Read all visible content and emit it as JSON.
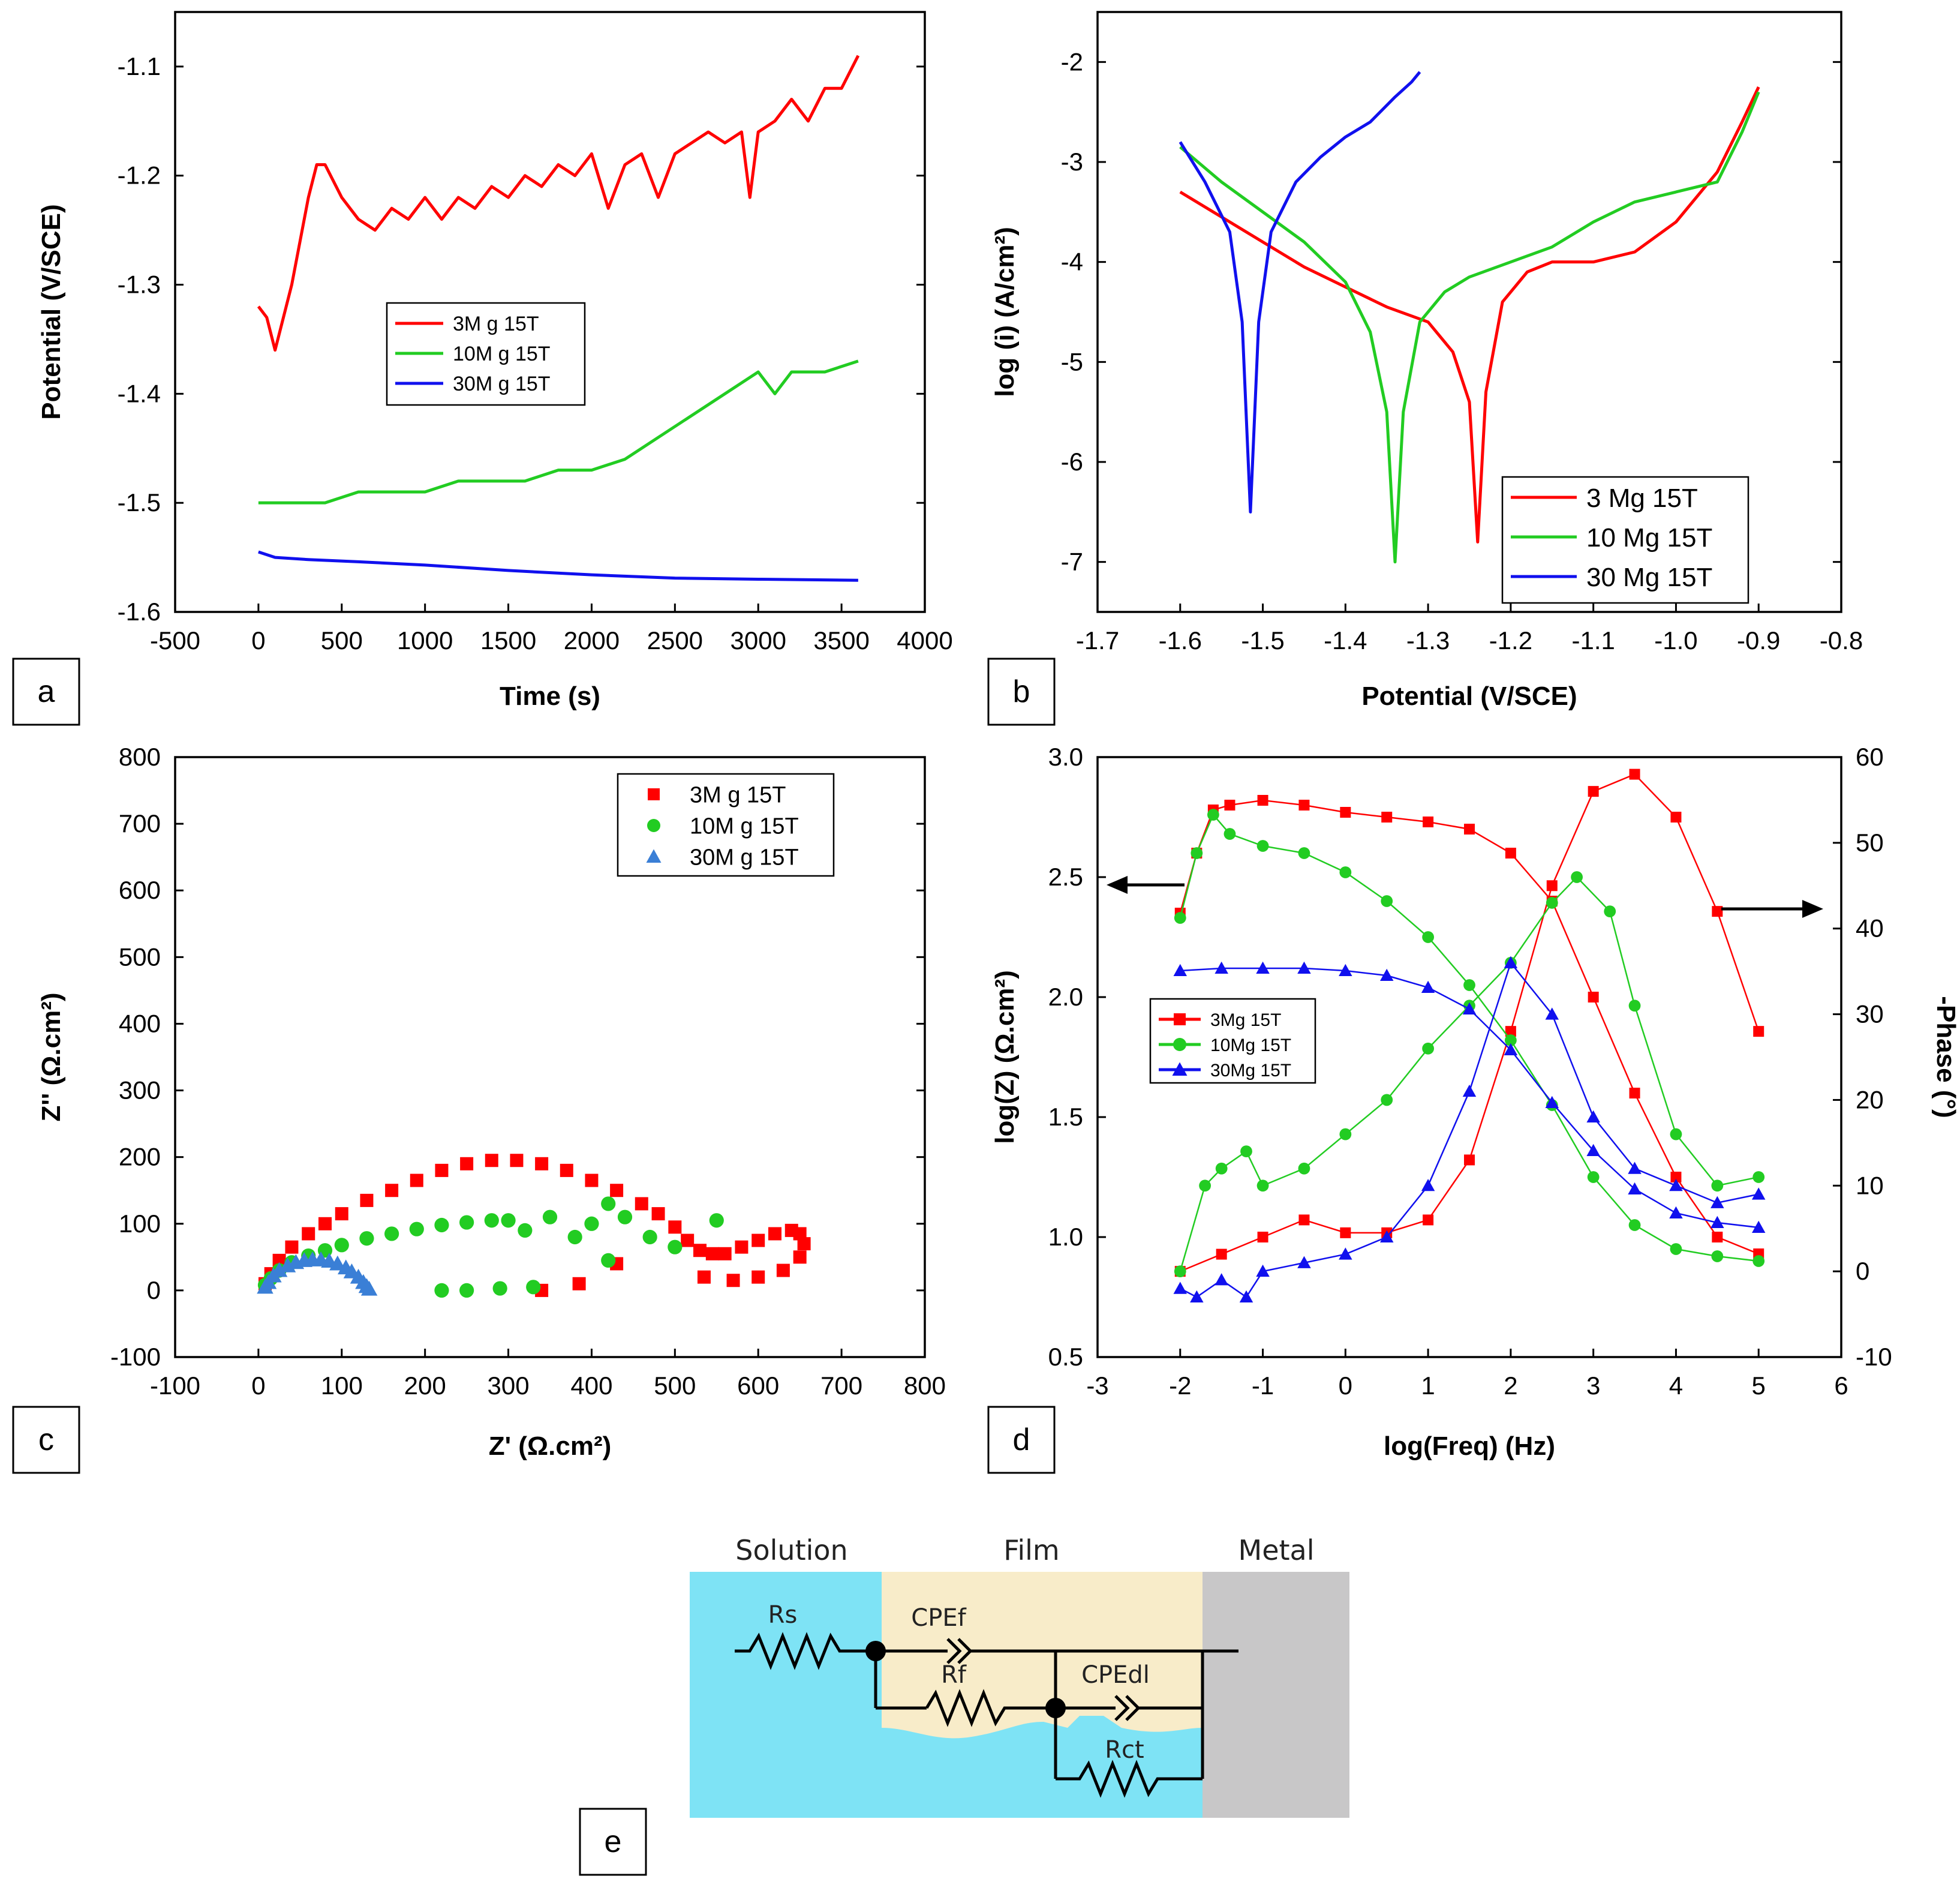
{
  "colors": {
    "red": "#ff0000",
    "green": "#22cc22",
    "blue": "#1010ee",
    "blue_light": "#3a7fd6",
    "solution": "#7ee3f5",
    "film": "#f8ecc9",
    "metal": "#c8c7c8"
  },
  "panel_labels": [
    "a",
    "b",
    "c",
    "d",
    "e"
  ],
  "chart_data": [
    {
      "id": "a",
      "type": "line",
      "xlabel": "Time (s)",
      "ylabel": "Potential (V/SCE)",
      "xlim": [
        -500,
        4000
      ],
      "ylim": [
        -1.6,
        -1.05
      ],
      "xticks": [
        -500,
        0,
        500,
        1000,
        1500,
        2000,
        2500,
        3000,
        3500,
        4000
      ],
      "yticks": [
        -1.6,
        -1.5,
        -1.4,
        -1.3,
        -1.2,
        -1.1
      ],
      "xtick_labels": [
        "-500",
        "0",
        "500",
        "1000",
        "1500",
        "2000",
        "2500",
        "3000",
        "3500",
        "4000"
      ],
      "ytick_labels": [
        "-1.6",
        "-1.5",
        "-1.4",
        "-1.3",
        "-1.2",
        "-1.1"
      ],
      "legend_position": "center",
      "series": [
        {
          "name": "3M g 15T",
          "color": "#ff0000",
          "x": [
            0,
            50,
            100,
            150,
            200,
            250,
            300,
            350,
            400,
            500,
            600,
            700,
            800,
            900,
            1000,
            1100,
            1200,
            1300,
            1400,
            1500,
            1600,
            1700,
            1800,
            1900,
            2000,
            2100,
            2200,
            2300,
            2400,
            2500,
            2600,
            2700,
            2800,
            2900,
            2950,
            3000,
            3100,
            3200,
            3300,
            3400,
            3500,
            3600
          ],
          "y": [
            -1.32,
            -1.33,
            -1.36,
            -1.33,
            -1.3,
            -1.26,
            -1.22,
            -1.19,
            -1.19,
            -1.22,
            -1.24,
            -1.25,
            -1.23,
            -1.24,
            -1.22,
            -1.24,
            -1.22,
            -1.23,
            -1.21,
            -1.22,
            -1.2,
            -1.21,
            -1.19,
            -1.2,
            -1.18,
            -1.23,
            -1.19,
            -1.18,
            -1.22,
            -1.18,
            -1.17,
            -1.16,
            -1.17,
            -1.16,
            -1.22,
            -1.16,
            -1.15,
            -1.13,
            -1.15,
            -1.12,
            -1.12,
            -1.09
          ]
        },
        {
          "name": "10M g 15T",
          "color": "#22cc22",
          "x": [
            0,
            200,
            400,
            600,
            800,
            1000,
            1200,
            1400,
            1600,
            1800,
            2000,
            2200,
            2400,
            2600,
            2800,
            3000,
            3100,
            3200,
            3400,
            3600
          ],
          "y": [
            -1.5,
            -1.5,
            -1.5,
            -1.49,
            -1.49,
            -1.49,
            -1.48,
            -1.48,
            -1.48,
            -1.47,
            -1.47,
            -1.46,
            -1.44,
            -1.42,
            -1.4,
            -1.38,
            -1.4,
            -1.38,
            -1.38,
            -1.37
          ]
        },
        {
          "name": "30M g 15T",
          "color": "#1010ee",
          "x": [
            0,
            100,
            300,
            600,
            1000,
            1500,
            2000,
            2500,
            3000,
            3600
          ],
          "y": [
            -1.545,
            -1.55,
            -1.552,
            -1.554,
            -1.557,
            -1.562,
            -1.566,
            -1.569,
            -1.57,
            -1.571
          ]
        }
      ]
    },
    {
      "id": "b",
      "type": "line",
      "xlabel": "Potential (V/SCE)",
      "ylabel": "log (i) (A/cm²)",
      "xlim": [
        -1.7,
        -0.8
      ],
      "ylim": [
        -7.5,
        -1.5
      ],
      "xticks": [
        -1.7,
        -1.6,
        -1.5,
        -1.4,
        -1.3,
        -1.2,
        -1.1,
        -1.0,
        -0.9,
        -0.8
      ],
      "yticks": [
        -7,
        -6,
        -5,
        -4,
        -3,
        -2
      ],
      "xtick_labels": [
        "-1.7",
        "-1.6",
        "-1.5",
        "-1.4",
        "-1.3",
        "-1.2",
        "-1.1",
        "-1.0",
        "-0.9",
        "-0.8"
      ],
      "ytick_labels": [
        "-7",
        "-6",
        "-5",
        "-4",
        "-3",
        "-2"
      ],
      "legend_position": "bottom-right",
      "series": [
        {
          "name": "3 Mg 15T",
          "color": "#ff0000",
          "x": [
            -1.6,
            -1.55,
            -1.5,
            -1.45,
            -1.4,
            -1.35,
            -1.3,
            -1.27,
            -1.25,
            -1.24,
            -1.23,
            -1.21,
            -1.18,
            -1.15,
            -1.1,
            -1.05,
            -1.0,
            -0.95,
            -0.92,
            -0.9
          ],
          "y": [
            -3.3,
            -3.55,
            -3.8,
            -4.05,
            -4.25,
            -4.45,
            -4.6,
            -4.9,
            -5.4,
            -6.8,
            -5.3,
            -4.4,
            -4.1,
            -4.0,
            -4.0,
            -3.9,
            -3.6,
            -3.1,
            -2.6,
            -2.25
          ]
        },
        {
          "name": "10 Mg 15T",
          "color": "#22cc22",
          "x": [
            -1.6,
            -1.55,
            -1.5,
            -1.45,
            -1.4,
            -1.37,
            -1.35,
            -1.34,
            -1.33,
            -1.31,
            -1.28,
            -1.25,
            -1.2,
            -1.15,
            -1.1,
            -1.05,
            -1.0,
            -0.95,
            -0.92,
            -0.9
          ],
          "y": [
            -2.85,
            -3.2,
            -3.5,
            -3.8,
            -4.2,
            -4.7,
            -5.5,
            -7.0,
            -5.5,
            -4.6,
            -4.3,
            -4.15,
            -4.0,
            -3.85,
            -3.6,
            -3.4,
            -3.3,
            -3.2,
            -2.7,
            -2.3
          ]
        },
        {
          "name": "30 Mg 15T",
          "color": "#1010ee",
          "x": [
            -1.6,
            -1.57,
            -1.54,
            -1.525,
            -1.515,
            -1.505,
            -1.49,
            -1.46,
            -1.43,
            -1.4,
            -1.37,
            -1.34,
            -1.32,
            -1.31
          ],
          "y": [
            -2.8,
            -3.2,
            -3.7,
            -4.6,
            -6.5,
            -4.6,
            -3.7,
            -3.2,
            -2.95,
            -2.75,
            -2.6,
            -2.35,
            -2.2,
            -2.1
          ]
        }
      ]
    },
    {
      "id": "c",
      "type": "scatter",
      "xlabel": "Z' (Ω.cm²)",
      "ylabel": "Z'' (Ω.cm²)",
      "xlim": [
        -100,
        800
      ],
      "ylim": [
        -100,
        800
      ],
      "xticks": [
        -100,
        0,
        100,
        200,
        300,
        400,
        500,
        600,
        700,
        800
      ],
      "yticks": [
        -100,
        0,
        100,
        200,
        300,
        400,
        500,
        600,
        700,
        800
      ],
      "xtick_labels": [
        "-100",
        "0",
        "100",
        "200",
        "300",
        "400",
        "500",
        "600",
        "700",
        "800"
      ],
      "ytick_labels": [
        "-100",
        "0",
        "100",
        "200",
        "300",
        "400",
        "500",
        "600",
        "700",
        "800"
      ],
      "legend_position": "top-right",
      "series": [
        {
          "name": "3M g 15T",
          "color": "#ff0000",
          "marker": "square",
          "x": [
            8,
            15,
            25,
            40,
            60,
            80,
            100,
            130,
            160,
            190,
            220,
            250,
            280,
            310,
            340,
            370,
            400,
            430,
            460,
            480,
            500,
            515,
            530,
            545,
            560,
            580,
            600,
            620,
            640,
            650,
            655,
            650,
            630,
            600,
            570,
            535,
            430,
            385,
            340
          ],
          "y": [
            10,
            25,
            45,
            65,
            85,
            100,
            115,
            135,
            150,
            165,
            180,
            190,
            195,
            195,
            190,
            180,
            165,
            150,
            130,
            115,
            95,
            75,
            60,
            55,
            55,
            65,
            75,
            85,
            90,
            85,
            70,
            50,
            30,
            20,
            15,
            20,
            40,
            10,
            0
          ]
        },
        {
          "name": "10M g 15T",
          "color": "#22cc22",
          "marker": "circle",
          "x": [
            8,
            15,
            25,
            40,
            60,
            80,
            100,
            130,
            160,
            190,
            220,
            250,
            280,
            300,
            320,
            350,
            380,
            400,
            420,
            440,
            470,
            500,
            550,
            420,
            330,
            290,
            250,
            220
          ],
          "y": [
            8,
            18,
            30,
            42,
            52,
            60,
            68,
            78,
            85,
            92,
            98,
            102,
            105,
            105,
            90,
            110,
            80,
            100,
            130,
            110,
            80,
            65,
            105,
            45,
            5,
            3,
            0,
            0
          ]
        },
        {
          "name": "30M g 15T",
          "color": "#3a7fd6",
          "marker": "triangle",
          "x": [
            8,
            12,
            18,
            25,
            35,
            45,
            55,
            65,
            75,
            85,
            95,
            105,
            112,
            120,
            126,
            130,
            133
          ],
          "y": [
            5,
            12,
            22,
            30,
            37,
            42,
            45,
            46,
            46,
            44,
            40,
            34,
            28,
            20,
            12,
            6,
            2
          ]
        }
      ]
    },
    {
      "id": "d",
      "type": "scatter",
      "xlabel": "log(Freq) (Hz)",
      "ylabel": "log(Z) (Ω.cm²)",
      "ylabel_right": "-Phase (°)",
      "xlim": [
        -3,
        6
      ],
      "ylim": [
        0.5,
        3.0
      ],
      "ylim_right": [
        -10,
        60
      ],
      "xticks": [
        -3,
        -2,
        -1,
        0,
        1,
        2,
        3,
        4,
        5,
        6
      ],
      "yticks": [
        0.5,
        1.0,
        1.5,
        2.0,
        2.5,
        3.0
      ],
      "yticks_right": [
        -10,
        0,
        10,
        20,
        30,
        40,
        50,
        60
      ],
      "xtick_labels": [
        "-3",
        "-2",
        "-1",
        "0",
        "1",
        "2",
        "3",
        "4",
        "5",
        "6"
      ],
      "ytick_labels": [
        "0.5",
        "1.0",
        "1.5",
        "2.0",
        "2.5",
        "3.0"
      ],
      "ytick_labels_right": [
        "-10",
        "0",
        "10",
        "20",
        "30",
        "40",
        "50",
        "60"
      ],
      "legend_position": "center-left",
      "series": [
        {
          "name": "3Mg 15T",
          "color": "#ff0000",
          "marker": "square",
          "axis": "left",
          "x": [
            -2,
            -1.8,
            -1.6,
            -1.4,
            -1,
            -0.5,
            0,
            0.5,
            1,
            1.5,
            2,
            2.5,
            3,
            3.5,
            4,
            4.5,
            5
          ],
          "y": [
            2.35,
            2.6,
            2.78,
            2.8,
            2.82,
            2.8,
            2.77,
            2.75,
            2.73,
            2.7,
            2.6,
            2.4,
            2.0,
            1.6,
            1.25,
            1.0,
            0.93
          ]
        },
        {
          "name": "3Mg 15T",
          "color": "#ff0000",
          "marker": "square",
          "axis": "right",
          "x": [
            -2,
            -1.5,
            -1,
            -0.5,
            0,
            0.5,
            1,
            1.5,
            2,
            2.5,
            3,
            3.5,
            4,
            4.5,
            5
          ],
          "y": [
            0,
            2,
            4,
            6,
            4.5,
            4.5,
            6,
            13,
            28,
            45,
            56,
            58,
            53,
            42,
            28
          ]
        },
        {
          "name": "10Mg 15T",
          "color": "#22cc22",
          "marker": "circle",
          "axis": "left",
          "x": [
            -2,
            -1.8,
            -1.6,
            -1.4,
            -1,
            -0.5,
            0,
            0.5,
            1,
            1.5,
            2,
            2.5,
            3,
            3.5,
            4,
            4.5,
            5
          ],
          "y": [
            2.33,
            2.6,
            2.76,
            2.68,
            2.63,
            2.6,
            2.52,
            2.4,
            2.25,
            2.05,
            1.82,
            1.55,
            1.25,
            1.05,
            0.95,
            0.92,
            0.9
          ]
        },
        {
          "name": "10Mg 15T",
          "color": "#22cc22",
          "marker": "circle",
          "axis": "right",
          "x": [
            -2,
            -1.7,
            -1.5,
            -1.2,
            -1,
            -0.5,
            0,
            0.5,
            1,
            1.5,
            2,
            2.5,
            2.8,
            3.2,
            3.5,
            4,
            4.5,
            5
          ],
          "y": [
            0,
            10,
            12,
            14,
            10,
            12,
            16,
            20,
            26,
            31,
            36,
            43,
            46,
            42,
            31,
            16,
            10,
            11
          ]
        },
        {
          "name": "30Mg 15T",
          "color": "#1010ee",
          "marker": "triangle",
          "axis": "left",
          "x": [
            -2,
            -1.5,
            -1,
            -0.5,
            0,
            0.5,
            1,
            1.5,
            2,
            2.5,
            3,
            3.5,
            4,
            4.5,
            5
          ],
          "y": [
            2.11,
            2.12,
            2.12,
            2.12,
            2.11,
            2.09,
            2.04,
            1.95,
            1.78,
            1.56,
            1.36,
            1.2,
            1.1,
            1.06,
            1.04
          ]
        },
        {
          "name": "30Mg 15T",
          "color": "#1010ee",
          "marker": "triangle",
          "axis": "right",
          "x": [
            -2,
            -1.8,
            -1.5,
            -1.2,
            -1,
            -0.5,
            0,
            0.5,
            1,
            1.5,
            2,
            2.5,
            3,
            3.5,
            4,
            4.5,
            5
          ],
          "y": [
            -2,
            -3,
            -1,
            -3,
            0,
            1,
            2,
            4,
            10,
            21,
            36,
            30,
            18,
            12,
            10,
            8,
            9
          ]
        }
      ]
    }
  ],
  "circuit": {
    "labels": {
      "solution": "Solution",
      "film": "Film",
      "metal": "Metal",
      "rs": "Rs",
      "cpe_f": "CPEf",
      "rf": "Rf",
      "cpe_dl": "CPEdl",
      "rct": "Rct"
    }
  }
}
